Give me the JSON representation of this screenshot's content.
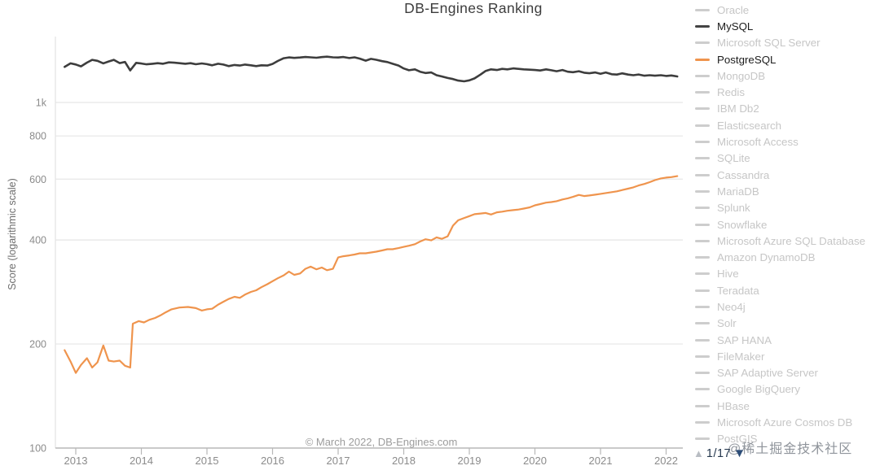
{
  "header": {
    "title": "DB-Engines Ranking"
  },
  "watermark": {
    "text": "@稀土掘金技术社区"
  },
  "pagination": {
    "up_icon": "▲",
    "page": "1/17",
    "down_icon": "▼"
  },
  "legend": {
    "inactive_line_color": "#cdcdcd",
    "inactive_text_color": "#c6c6c6",
    "active_text_color": "#1c1c1c",
    "items": [
      {
        "label": "Oracle",
        "highlighted": false
      },
      {
        "label": "MySQL",
        "highlighted": true,
        "color": "#434343"
      },
      {
        "label": "Microsoft SQL Server",
        "highlighted": false
      },
      {
        "label": "PostgreSQL",
        "highlighted": true,
        "color": "#ef944d"
      },
      {
        "label": "MongoDB",
        "highlighted": false
      },
      {
        "label": "Redis",
        "highlighted": false
      },
      {
        "label": "IBM Db2",
        "highlighted": false
      },
      {
        "label": "Elasticsearch",
        "highlighted": false
      },
      {
        "label": "Microsoft Access",
        "highlighted": false
      },
      {
        "label": "SQLite",
        "highlighted": false
      },
      {
        "label": "Cassandra",
        "highlighted": false
      },
      {
        "label": "MariaDB",
        "highlighted": false
      },
      {
        "label": "Splunk",
        "highlighted": false
      },
      {
        "label": "Snowflake",
        "highlighted": false
      },
      {
        "label": "Microsoft Azure SQL Database",
        "highlighted": false
      },
      {
        "label": "Amazon DynamoDB",
        "highlighted": false
      },
      {
        "label": "Hive",
        "highlighted": false
      },
      {
        "label": "Teradata",
        "highlighted": false
      },
      {
        "label": "Neo4j",
        "highlighted": false
      },
      {
        "label": "Solr",
        "highlighted": false
      },
      {
        "label": "SAP HANA",
        "highlighted": false
      },
      {
        "label": "FileMaker",
        "highlighted": false
      },
      {
        "label": "SAP Adaptive Server",
        "highlighted": false
      },
      {
        "label": "Google BigQuery",
        "highlighted": false
      },
      {
        "label": "HBase",
        "highlighted": false
      },
      {
        "label": "Microsoft Azure Cosmos DB",
        "highlighted": false
      },
      {
        "label": "PostGIS",
        "highlighted": false
      }
    ]
  },
  "chart_data": {
    "type": "line",
    "title": "DB-Engines Ranking",
    "ylabel": "Score (logarithmic scale)",
    "footer": "© March 2022, DB-Engines.com",
    "y_scale": "log",
    "ylim": [
      100,
      1500
    ],
    "y_ticks": [
      {
        "label": "1k",
        "value": 1000
      },
      {
        "label": "800",
        "value": 800
      },
      {
        "label": "600",
        "value": 600
      },
      {
        "label": "400",
        "value": 400
      },
      {
        "label": "200",
        "value": 200
      },
      {
        "label": "100",
        "value": 100
      }
    ],
    "x_ticks": [
      2013,
      2014,
      2015,
      2016,
      2017,
      2018,
      2019,
      2020,
      2021,
      2022
    ],
    "x_range": [
      2012.75,
      2022.35
    ],
    "grid_color": "#e6e6e6",
    "axis_color": "#b8b8b8",
    "tick_text_color": "#8b8b8b",
    "legend_position": "right",
    "series": [
      {
        "name": "MySQL",
        "color": "#3d3d3d",
        "stroke_width": 2.6,
        "points": [
          [
            2012.83,
            1268
          ],
          [
            2012.92,
            1298
          ],
          [
            2013.0,
            1288
          ],
          [
            2013.08,
            1272
          ],
          [
            2013.17,
            1304
          ],
          [
            2013.25,
            1328
          ],
          [
            2013.33,
            1320
          ],
          [
            2013.42,
            1298
          ],
          [
            2013.5,
            1314
          ],
          [
            2013.58,
            1328
          ],
          [
            2013.67,
            1300
          ],
          [
            2013.75,
            1310
          ],
          [
            2013.83,
            1238
          ],
          [
            2013.92,
            1302
          ],
          [
            2014.0,
            1296
          ],
          [
            2014.08,
            1289
          ],
          [
            2014.17,
            1294
          ],
          [
            2014.25,
            1299
          ],
          [
            2014.33,
            1294
          ],
          [
            2014.42,
            1306
          ],
          [
            2014.5,
            1303
          ],
          [
            2014.58,
            1299
          ],
          [
            2014.67,
            1294
          ],
          [
            2014.75,
            1299
          ],
          [
            2014.83,
            1290
          ],
          [
            2014.92,
            1297
          ],
          [
            2015.0,
            1291
          ],
          [
            2015.08,
            1281
          ],
          [
            2015.17,
            1294
          ],
          [
            2015.25,
            1287
          ],
          [
            2015.33,
            1274
          ],
          [
            2015.42,
            1284
          ],
          [
            2015.5,
            1279
          ],
          [
            2015.58,
            1287
          ],
          [
            2015.67,
            1281
          ],
          [
            2015.75,
            1274
          ],
          [
            2015.83,
            1281
          ],
          [
            2015.92,
            1279
          ],
          [
            2016.0,
            1293
          ],
          [
            2016.08,
            1318
          ],
          [
            2016.17,
            1343
          ],
          [
            2016.25,
            1350
          ],
          [
            2016.33,
            1346
          ],
          [
            2016.42,
            1349
          ],
          [
            2016.5,
            1354
          ],
          [
            2016.58,
            1351
          ],
          [
            2016.67,
            1347
          ],
          [
            2016.75,
            1353
          ],
          [
            2016.83,
            1357
          ],
          [
            2016.92,
            1351
          ],
          [
            2017.0,
            1349
          ],
          [
            2017.08,
            1354
          ],
          [
            2017.17,
            1344
          ],
          [
            2017.25,
            1351
          ],
          [
            2017.33,
            1339
          ],
          [
            2017.42,
            1321
          ],
          [
            2017.5,
            1337
          ],
          [
            2017.58,
            1329
          ],
          [
            2017.67,
            1317
          ],
          [
            2017.75,
            1309
          ],
          [
            2017.83,
            1294
          ],
          [
            2017.92,
            1279
          ],
          [
            2018.0,
            1254
          ],
          [
            2018.08,
            1239
          ],
          [
            2018.17,
            1247
          ],
          [
            2018.25,
            1227
          ],
          [
            2018.33,
            1217
          ],
          [
            2018.42,
            1221
          ],
          [
            2018.5,
            1199
          ],
          [
            2018.58,
            1189
          ],
          [
            2018.67,
            1177
          ],
          [
            2018.75,
            1169
          ],
          [
            2018.83,
            1157
          ],
          [
            2018.92,
            1151
          ],
          [
            2019.0,
            1159
          ],
          [
            2019.08,
            1174
          ],
          [
            2019.17,
            1204
          ],
          [
            2019.25,
            1234
          ],
          [
            2019.33,
            1247
          ],
          [
            2019.42,
            1241
          ],
          [
            2019.5,
            1251
          ],
          [
            2019.58,
            1247
          ],
          [
            2019.67,
            1255
          ],
          [
            2019.75,
            1251
          ],
          [
            2019.83,
            1247
          ],
          [
            2019.92,
            1244
          ],
          [
            2020.0,
            1241
          ],
          [
            2020.08,
            1237
          ],
          [
            2020.17,
            1247
          ],
          [
            2020.25,
            1239
          ],
          [
            2020.33,
            1231
          ],
          [
            2020.42,
            1241
          ],
          [
            2020.5,
            1227
          ],
          [
            2020.58,
            1223
          ],
          [
            2020.67,
            1231
          ],
          [
            2020.75,
            1219
          ],
          [
            2020.83,
            1215
          ],
          [
            2020.92,
            1221
          ],
          [
            2021.0,
            1211
          ],
          [
            2021.08,
            1221
          ],
          [
            2021.17,
            1207
          ],
          [
            2021.25,
            1204
          ],
          [
            2021.33,
            1214
          ],
          [
            2021.42,
            1204
          ],
          [
            2021.5,
            1199
          ],
          [
            2021.58,
            1205
          ],
          [
            2021.67,
            1195
          ],
          [
            2021.75,
            1199
          ],
          [
            2021.83,
            1195
          ],
          [
            2021.92,
            1199
          ],
          [
            2022.0,
            1193
          ],
          [
            2022.08,
            1197
          ],
          [
            2022.17,
            1189
          ]
        ]
      },
      {
        "name": "PostgreSQL",
        "color": "#ef944d",
        "stroke_width": 2.2,
        "points": [
          [
            2012.83,
            192
          ],
          [
            2012.92,
            178
          ],
          [
            2013.0,
            165
          ],
          [
            2013.08,
            174
          ],
          [
            2013.17,
            182
          ],
          [
            2013.25,
            171
          ],
          [
            2013.33,
            177
          ],
          [
            2013.42,
            198
          ],
          [
            2013.5,
            179
          ],
          [
            2013.58,
            178
          ],
          [
            2013.67,
            179
          ],
          [
            2013.75,
            173
          ],
          [
            2013.83,
            171
          ],
          [
            2013.87,
            229
          ],
          [
            2013.96,
            233
          ],
          [
            2014.04,
            231
          ],
          [
            2014.12,
            235
          ],
          [
            2014.21,
            238
          ],
          [
            2014.29,
            242
          ],
          [
            2014.37,
            247
          ],
          [
            2014.46,
            252
          ],
          [
            2014.58,
            255
          ],
          [
            2014.71,
            256
          ],
          [
            2014.83,
            254
          ],
          [
            2014.92,
            250
          ],
          [
            2015.0,
            252
          ],
          [
            2015.08,
            253
          ],
          [
            2015.17,
            260
          ],
          [
            2015.25,
            265
          ],
          [
            2015.33,
            270
          ],
          [
            2015.42,
            274
          ],
          [
            2015.5,
            272
          ],
          [
            2015.58,
            278
          ],
          [
            2015.67,
            283
          ],
          [
            2015.75,
            286
          ],
          [
            2015.83,
            292
          ],
          [
            2015.92,
            298
          ],
          [
            2016.0,
            304
          ],
          [
            2016.08,
            310
          ],
          [
            2016.17,
            316
          ],
          [
            2016.25,
            324
          ],
          [
            2016.33,
            317
          ],
          [
            2016.42,
            320
          ],
          [
            2016.5,
            330
          ],
          [
            2016.58,
            335
          ],
          [
            2016.67,
            329
          ],
          [
            2016.75,
            333
          ],
          [
            2016.83,
            327
          ],
          [
            2016.92,
            330
          ],
          [
            2017.0,
            356
          ],
          [
            2017.08,
            359
          ],
          [
            2017.17,
            361
          ],
          [
            2017.25,
            363
          ],
          [
            2017.33,
            366
          ],
          [
            2017.42,
            366
          ],
          [
            2017.5,
            368
          ],
          [
            2017.58,
            370
          ],
          [
            2017.67,
            373
          ],
          [
            2017.75,
            376
          ],
          [
            2017.83,
            376
          ],
          [
            2017.92,
            379
          ],
          [
            2018.0,
            382
          ],
          [
            2018.08,
            385
          ],
          [
            2018.17,
            389
          ],
          [
            2018.25,
            396
          ],
          [
            2018.33,
            402
          ],
          [
            2018.42,
            399
          ],
          [
            2018.5,
            407
          ],
          [
            2018.58,
            403
          ],
          [
            2018.67,
            410
          ],
          [
            2018.75,
            440
          ],
          [
            2018.83,
            456
          ],
          [
            2018.92,
            463
          ],
          [
            2019.0,
            469
          ],
          [
            2019.08,
            475
          ],
          [
            2019.17,
            477
          ],
          [
            2019.25,
            479
          ],
          [
            2019.33,
            474
          ],
          [
            2019.42,
            481
          ],
          [
            2019.5,
            483
          ],
          [
            2019.58,
            486
          ],
          [
            2019.67,
            488
          ],
          [
            2019.75,
            490
          ],
          [
            2019.83,
            493
          ],
          [
            2019.92,
            497
          ],
          [
            2020.0,
            504
          ],
          [
            2020.08,
            508
          ],
          [
            2020.17,
            513
          ],
          [
            2020.25,
            515
          ],
          [
            2020.33,
            518
          ],
          [
            2020.42,
            524
          ],
          [
            2020.5,
            528
          ],
          [
            2020.58,
            533
          ],
          [
            2020.67,
            540
          ],
          [
            2020.75,
            536
          ],
          [
            2020.83,
            538
          ],
          [
            2020.92,
            541
          ],
          [
            2021.0,
            544
          ],
          [
            2021.08,
            547
          ],
          [
            2021.17,
            550
          ],
          [
            2021.25,
            553
          ],
          [
            2021.33,
            558
          ],
          [
            2021.42,
            563
          ],
          [
            2021.5,
            568
          ],
          [
            2021.58,
            575
          ],
          [
            2021.67,
            581
          ],
          [
            2021.75,
            588
          ],
          [
            2021.83,
            596
          ],
          [
            2021.92,
            603
          ],
          [
            2022.0,
            606
          ],
          [
            2022.08,
            608
          ],
          [
            2022.17,
            612
          ]
        ]
      }
    ]
  }
}
